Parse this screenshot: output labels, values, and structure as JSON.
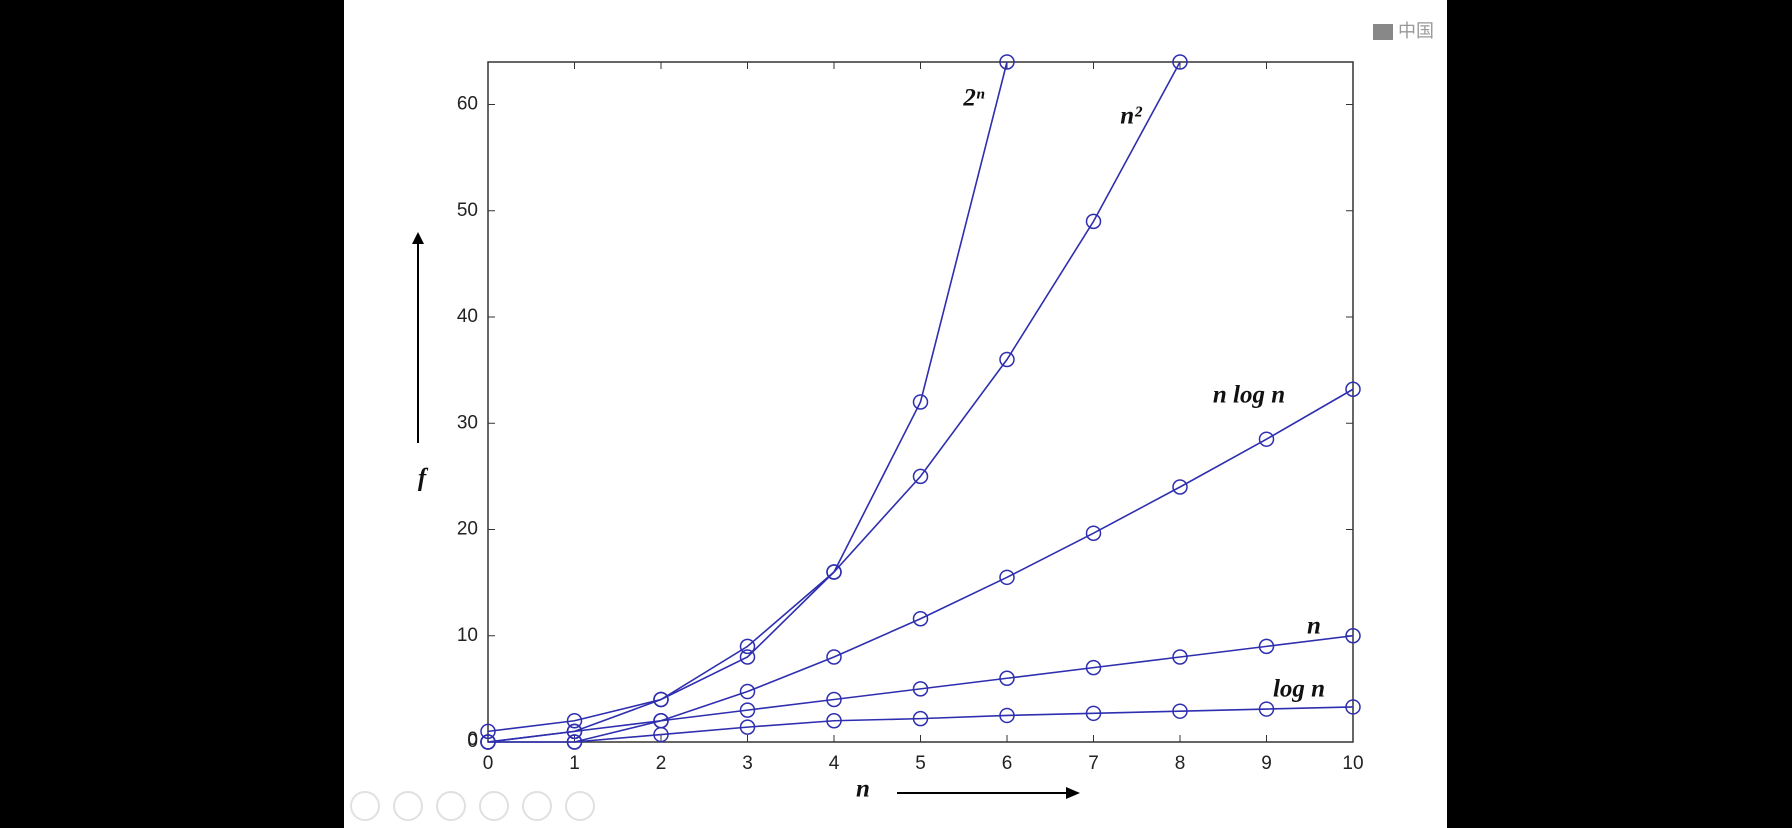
{
  "watermark": "中国",
  "chart_data": {
    "type": "line",
    "x_label": "n",
    "y_label": "f",
    "x": [
      0,
      1,
      2,
      3,
      4,
      5,
      6,
      7,
      8,
      9,
      10
    ],
    "xlim": [
      0,
      10
    ],
    "xticks": [
      0,
      1,
      2,
      3,
      4,
      5,
      6,
      7,
      8,
      9,
      10
    ],
    "ylim": [
      0,
      64
    ],
    "yticks": [
      0,
      10,
      20,
      30,
      40,
      50,
      60
    ],
    "grid": false,
    "series": [
      {
        "name": "2ⁿ",
        "color": "#2e2eb0",
        "values": [
          1,
          2,
          4,
          8,
          16,
          32,
          64,
          null,
          null,
          null,
          null
        ]
      },
      {
        "name": "n²",
        "color": "#2e2eb0",
        "values": [
          0,
          1,
          4,
          9,
          16,
          25,
          36,
          49,
          64,
          null,
          null
        ]
      },
      {
        "name": "n log n",
        "color": "#2e2eb0",
        "values": [
          0,
          0,
          2,
          4.75,
          8,
          11.6,
          15.5,
          19.65,
          24,
          28.5,
          33.2
        ]
      },
      {
        "name": "n",
        "color": "#2e2eb0",
        "values": [
          0,
          1,
          2,
          3,
          4,
          5,
          6,
          7,
          8,
          9,
          10
        ]
      },
      {
        "name": "log n",
        "color": "#2e2eb0",
        "values": [
          null,
          0,
          0.7,
          1.4,
          2,
          2.2,
          2.5,
          2.7,
          2.9,
          3.1,
          3.3
        ]
      }
    ]
  }
}
